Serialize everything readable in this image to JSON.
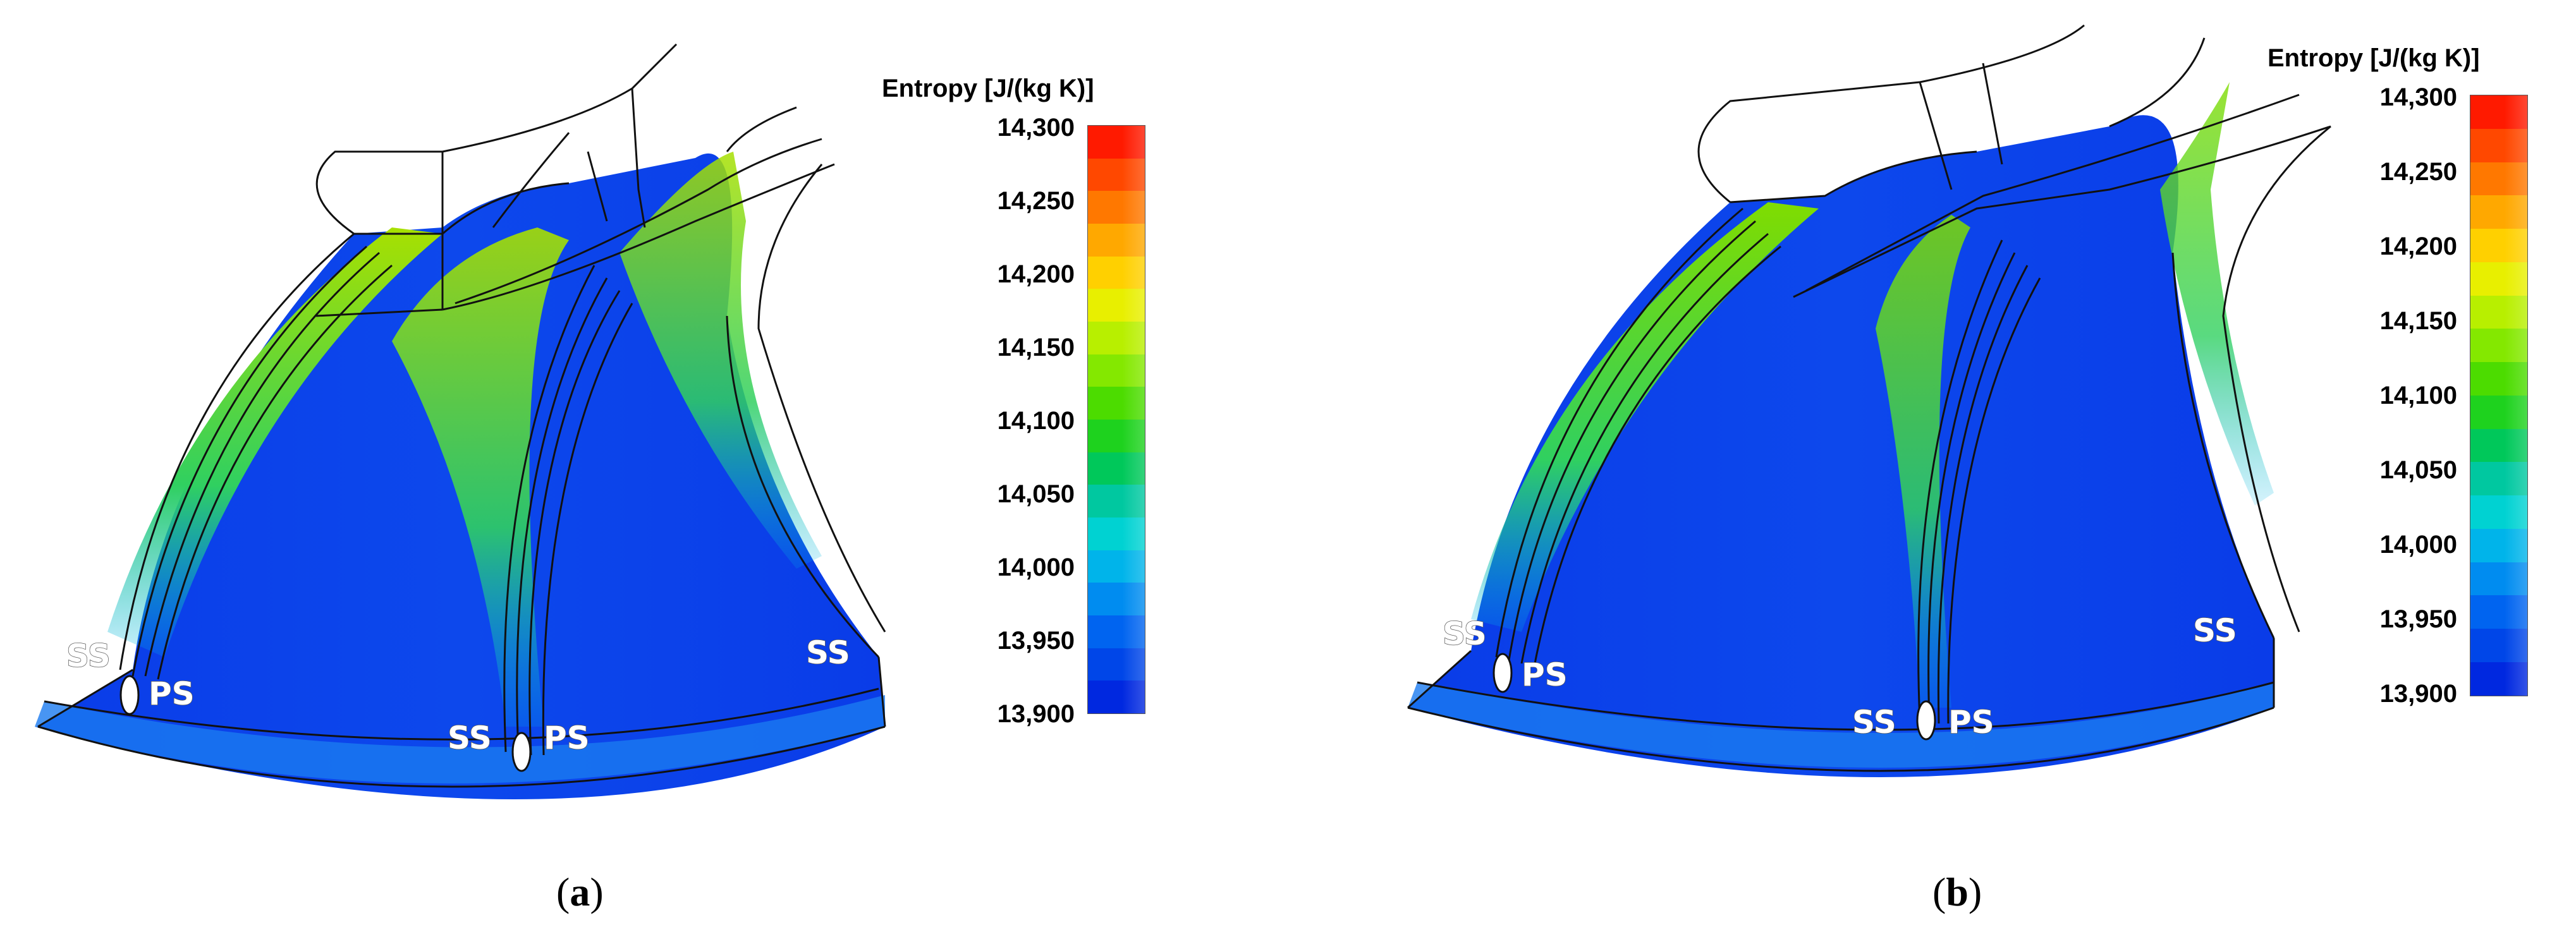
{
  "colorbar": {
    "title": "Entropy [J/(kg K)]",
    "ticks": [
      "14,300",
      "14,250",
      "14,200",
      "14,150",
      "14,100",
      "14,050",
      "14,000",
      "13,950",
      "13,900"
    ],
    "colors": [
      "#ff1a00",
      "#ff4800",
      "#ff7800",
      "#ffa800",
      "#ffd000",
      "#e8ef00",
      "#b8ef00",
      "#84e800",
      "#4cdc00",
      "#1ed21e",
      "#00c85a",
      "#00c8a0",
      "#00d2d2",
      "#00b4ea",
      "#008cf0",
      "#0064f0",
      "#0046e8",
      "#0028e0"
    ]
  },
  "panels": [
    {
      "id": "a",
      "sublabel_open": "(",
      "sublabel_letter": "a",
      "sublabel_close": ")",
      "labels": {
        "ss_left": "SS",
        "ps_left": "PS",
        "ss_mid": "SS",
        "ps_mid": "PS",
        "ss_right": "SS"
      }
    },
    {
      "id": "b",
      "sublabel_open": "(",
      "sublabel_letter": "b",
      "sublabel_close": ")",
      "labels": {
        "ss_left": "SS",
        "ps_left": "PS",
        "ss_mid": "SS",
        "ps_mid": "PS",
        "ss_right": "SS"
      }
    }
  ],
  "colors": {
    "field_base": "#0a3ce8",
    "field_mid": "#1a6ef0",
    "high_entropy": "#9ae000",
    "outline": "#111111"
  }
}
